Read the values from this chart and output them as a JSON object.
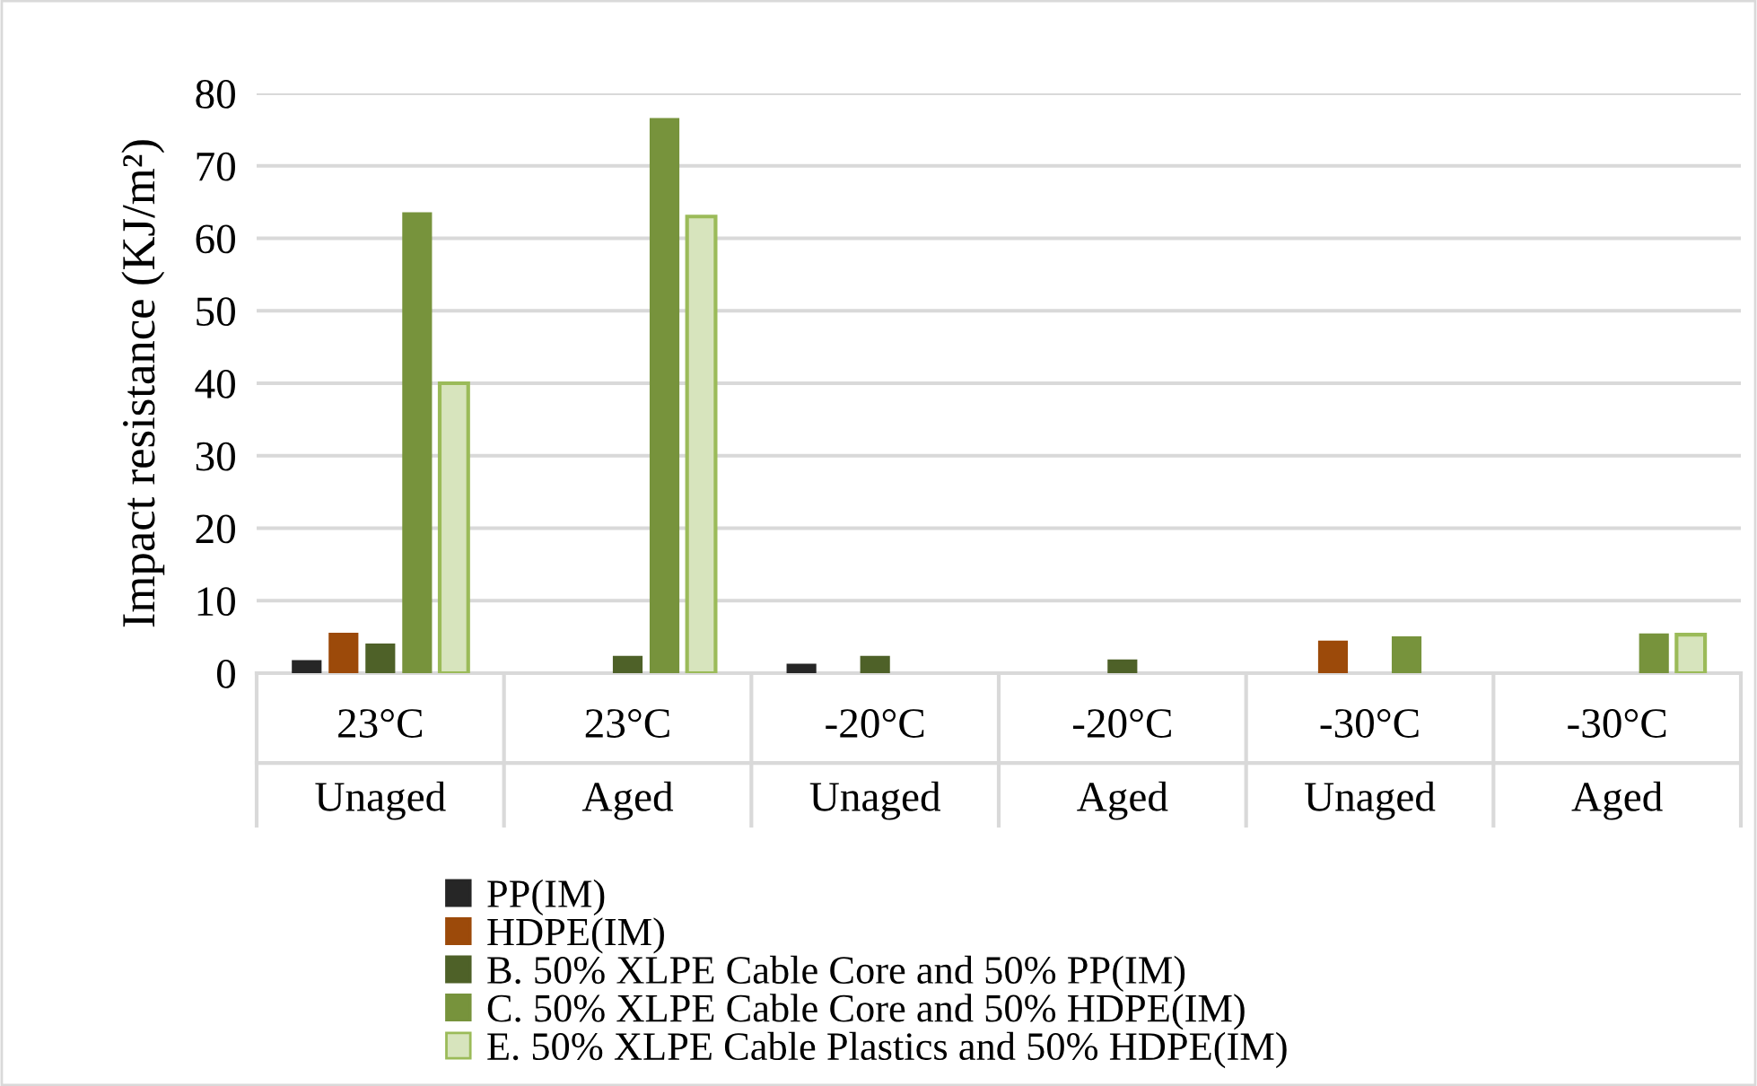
{
  "chart_data": {
    "type": "bar",
    "ylabel": "Impact resistance (KJ/m²)",
    "categories": [
      "23°C\nUnaged",
      "23°C\nAged",
      "-20°C\nUnaged",
      "-20°C\nAged",
      "-30°C\nUnaged",
      "-30°C\nAged"
    ],
    "series": [
      {
        "name": "PP(IM)",
        "color": "#262626",
        "values": [
          1.7,
          null,
          1.2,
          null,
          null,
          null
        ]
      },
      {
        "name": "HDPE(IM)",
        "color": "#9c4a0a",
        "values": [
          5.5,
          null,
          null,
          null,
          4.4,
          null
        ]
      },
      {
        "name": "B. 50% XLPE Cable Core and 50% PP(IM)",
        "color": "#4e6128",
        "values": [
          4.0,
          2.3,
          2.3,
          1.8,
          null,
          null
        ]
      },
      {
        "name": "C. 50% XLPE Cable Core and 50% HDPE(IM)",
        "color": "#77933c",
        "values": [
          63.5,
          76.5,
          null,
          null,
          5.0,
          5.4
        ]
      },
      {
        "name": "E. 50% XLPE Cable Plastics and 50% HDPE(IM)",
        "color": "#d7e4bd",
        "values": [
          40,
          63,
          null,
          null,
          null,
          5.3
        ]
      }
    ],
    "ylim": [
      0,
      80
    ],
    "yticks": [
      0,
      10,
      20,
      30,
      40,
      50,
      60,
      70,
      80
    ],
    "grid": "y",
    "legend": "bottom"
  }
}
